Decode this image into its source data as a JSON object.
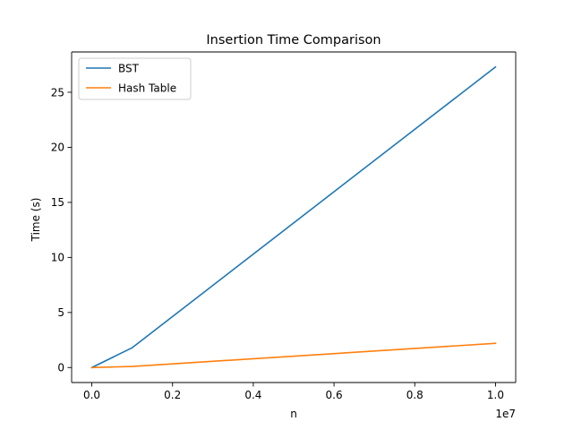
{
  "chart_data": {
    "type": "line",
    "title": "Insertion Time Comparison",
    "xlabel": "n",
    "ylabel": "Time (s)",
    "x_offset_label": "1e7",
    "x": [
      1000,
      1000000,
      10000000
    ],
    "series": [
      {
        "name": "BST",
        "color": "#1f77b4",
        "values": [
          0.0,
          1.8,
          27.3
        ]
      },
      {
        "name": "Hash Table",
        "color": "#ff7f0e",
        "values": [
          0.0,
          0.1,
          2.2
        ]
      }
    ],
    "xlim": [
      -500000,
      10500000
    ],
    "ylim": [
      -1.36,
      28.66
    ],
    "xticks": [
      0,
      2000000,
      4000000,
      6000000,
      8000000,
      10000000
    ],
    "xtick_labels": [
      "0.0",
      "0.2",
      "0.4",
      "0.6",
      "0.8",
      "1.0"
    ],
    "yticks": [
      0,
      5,
      10,
      15,
      20,
      25
    ],
    "ytick_labels": [
      "0",
      "5",
      "10",
      "15",
      "20",
      "25"
    ],
    "grid": false,
    "legend": "top-left"
  }
}
